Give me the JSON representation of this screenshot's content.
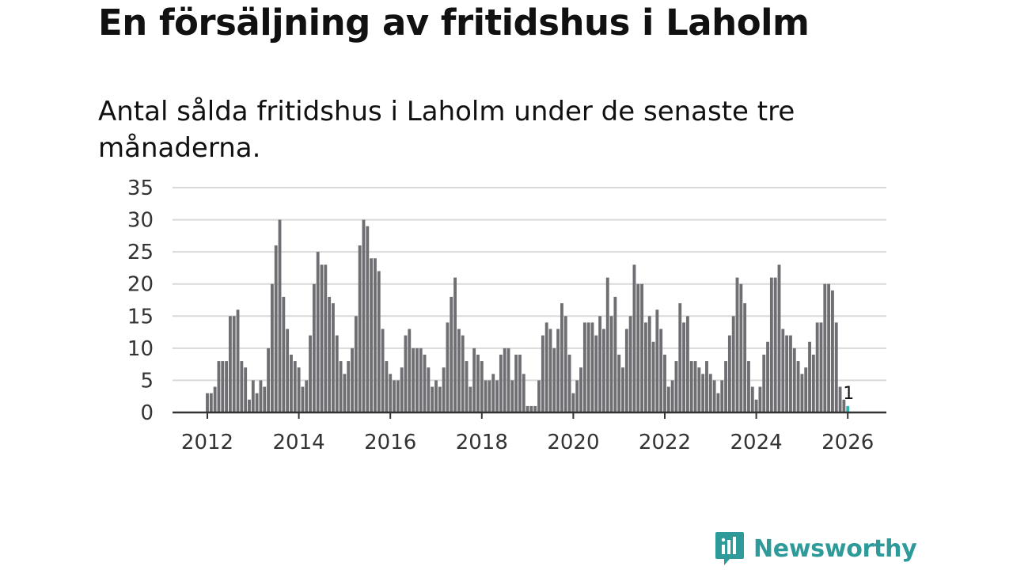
{
  "header": {
    "title": "En försäljning av fritidshus i Laholm",
    "subtitle": "Antal sålda fritidshus i Laholm under de senaste tre månaderna."
  },
  "brand": {
    "name": "Newsworthy",
    "color": "#2f9a9a"
  },
  "chart_data": {
    "type": "bar",
    "title": "En försäljning av fritidshus i Laholm",
    "subtitle": "Antal sålda fritidshus i Laholm under de senaste tre månaderna.",
    "xlabel": "",
    "ylabel": "",
    "ylim": [
      0,
      35
    ],
    "yticks": [
      0,
      5,
      10,
      15,
      20,
      25,
      30,
      35
    ],
    "xticks": [
      "2012",
      "2014",
      "2016",
      "2018",
      "2020",
      "2022",
      "2024",
      "2026"
    ],
    "grid": true,
    "start": "2012-01",
    "frequency": "monthly",
    "bar_color": "#6e6e73",
    "highlight_color": "#2fb5b5",
    "values": [
      3,
      3,
      4,
      8,
      8,
      8,
      15,
      15,
      16,
      8,
      7,
      2,
      5,
      3,
      5,
      4,
      10,
      20,
      26,
      30,
      18,
      13,
      9,
      8,
      7,
      4,
      5,
      12,
      20,
      25,
      23,
      23,
      18,
      17,
      12,
      8,
      6,
      8,
      10,
      15,
      26,
      30,
      29,
      24,
      24,
      22,
      13,
      8,
      6,
      5,
      5,
      7,
      12,
      13,
      10,
      10,
      10,
      9,
      7,
      4,
      5,
      4,
      7,
      14,
      18,
      21,
      13,
      12,
      8,
      4,
      10,
      9,
      8,
      5,
      5,
      6,
      5,
      9,
      10,
      10,
      5,
      9,
      9,
      6,
      1,
      1,
      1,
      5,
      12,
      14,
      13,
      10,
      13,
      17,
      15,
      9,
      3,
      5,
      7,
      14,
      14,
      14,
      12,
      15,
      13,
      21,
      15,
      18,
      9,
      7,
      13,
      15,
      23,
      20,
      20,
      14,
      15,
      11,
      16,
      13,
      9,
      4,
      5,
      8,
      17,
      14,
      15,
      8,
      8,
      7,
      6,
      8,
      6,
      5,
      3,
      5,
      8,
      12,
      15,
      21,
      20,
      17,
      8,
      4,
      2,
      4,
      9,
      11,
      21,
      21,
      23,
      13,
      12,
      12,
      10,
      8,
      6,
      7,
      11,
      9,
      14,
      14,
      20,
      20,
      19,
      14,
      4,
      2,
      1
    ],
    "annotations": [
      {
        "index": 168,
        "label": "1"
      }
    ]
  }
}
